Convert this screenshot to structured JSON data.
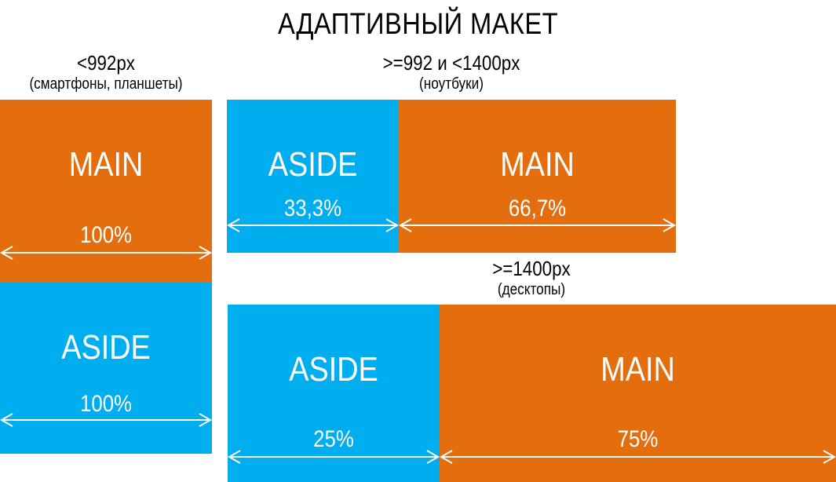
{
  "title": "АДАПТИВНЫЙ МАКЕТ",
  "colors": {
    "main": "#E46D0D",
    "aside": "#00AEEF",
    "arrow": "#ffffff"
  },
  "mobile": {
    "breakpoint": "<992px",
    "devices": "(смартфоны, планшеты)",
    "main": {
      "label": "MAIN",
      "percent": "100%"
    },
    "aside": {
      "label": "ASIDE",
      "percent": "100%"
    }
  },
  "laptop": {
    "breakpoint": ">=992 и <1400px",
    "devices": "(ноутбуки)",
    "aside": {
      "label": "ASIDE",
      "percent": "33,3%"
    },
    "main": {
      "label": "MAIN",
      "percent": "66,7%"
    }
  },
  "desktop": {
    "breakpoint": ">=1400px",
    "devices": "(десктопы)",
    "aside": {
      "label": "ASIDE",
      "percent": "25%"
    },
    "main": {
      "label": "MAIN",
      "percent": "75%"
    }
  }
}
